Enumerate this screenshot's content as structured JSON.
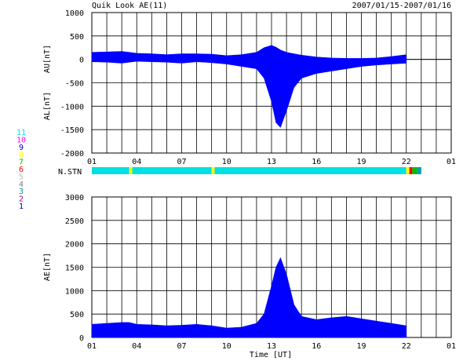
{
  "header": {
    "title": "Quik Look AE(11)",
    "date_range": "2007/01/15-2007/01/16"
  },
  "colors": {
    "fill": "#0000ff",
    "station_colors": {
      "11": "#00e0e0",
      "10": "#ff00ff",
      "9": "#0000c0",
      "8": "#ffff00",
      "7": "#00c000",
      "6": "#ff0000",
      "5": "#c0c0c0",
      "4": "#808080",
      "3": "#00a0a0",
      "2": "#a000a0",
      "1": "#0000a0"
    }
  },
  "station_legend": [
    "11",
    "10",
    "9",
    "8",
    "7",
    "6",
    "5",
    "4",
    "3",
    "2",
    "1"
  ],
  "chart_data": [
    {
      "type": "area",
      "name": "AU/AL",
      "ylabels": [
        "AU[nT]",
        "AL[nT]"
      ],
      "ylim": [
        -2000,
        1000
      ],
      "yticks": [
        1000,
        500,
        0,
        -500,
        -1000,
        -1500,
        -2000
      ],
      "xlim": [
        1,
        25
      ],
      "xtick_labels": [
        "01",
        "04",
        "07",
        "10",
        "13",
        "16",
        "19",
        "22",
        "01"
      ],
      "x_hours": [
        1,
        2,
        3,
        3.5,
        4,
        5,
        6,
        7,
        8,
        9,
        10,
        11,
        12,
        12.5,
        13,
        13.3,
        13.6,
        14,
        14.5,
        15,
        16,
        17,
        18,
        19,
        20,
        21,
        22
      ],
      "au": [
        150,
        160,
        170,
        150,
        130,
        120,
        100,
        120,
        120,
        110,
        80,
        100,
        150,
        250,
        300,
        260,
        200,
        150,
        120,
        90,
        50,
        30,
        20,
        20,
        30,
        60,
        100
      ],
      "al": [
        -50,
        -60,
        -80,
        -60,
        -40,
        -50,
        -60,
        -80,
        -50,
        -70,
        -100,
        -150,
        -200,
        -400,
        -900,
        -1350,
        -1450,
        -1100,
        -600,
        -400,
        -300,
        -250,
        -200,
        -150,
        -120,
        -100,
        -80
      ],
      "grid": true
    },
    {
      "type": "station_bar",
      "label": "N.STN",
      "segments": [
        {
          "from": 1,
          "to": 3.5,
          "station": "11"
        },
        {
          "from": 3.5,
          "to": 3.7,
          "station": "8"
        },
        {
          "from": 3.7,
          "to": 9.0,
          "station": "11"
        },
        {
          "from": 9.0,
          "to": 9.2,
          "station": "8"
        },
        {
          "from": 9.2,
          "to": 22.0,
          "station": "11"
        },
        {
          "from": 22.0,
          "to": 22.2,
          "station": "8"
        },
        {
          "from": 22.2,
          "to": 22.4,
          "station": "6"
        },
        {
          "from": 22.4,
          "to": 22.7,
          "station": "7"
        },
        {
          "from": 22.7,
          "to": 23.0,
          "station": "3"
        }
      ]
    },
    {
      "type": "area",
      "name": "AE",
      "ylabel": "AE[nT]",
      "ylim": [
        0,
        3000
      ],
      "yticks": [
        3000,
        2500,
        2000,
        1500,
        1000,
        500,
        0
      ],
      "xlim": [
        1,
        25
      ],
      "xlabel": "Time [UT]",
      "xtick_labels": [
        "01",
        "04",
        "07",
        "10",
        "13",
        "16",
        "19",
        "22",
        "01"
      ],
      "x_hours": [
        1,
        2,
        3,
        3.5,
        4,
        5,
        6,
        7,
        8,
        9,
        10,
        11,
        12,
        12.5,
        13,
        13.3,
        13.6,
        14,
        14.5,
        15,
        16,
        17,
        18,
        19,
        20,
        21,
        22
      ],
      "values": [
        280,
        300,
        320,
        320,
        280,
        270,
        250,
        260,
        280,
        250,
        200,
        220,
        300,
        500,
        1100,
        1500,
        1700,
        1350,
        700,
        450,
        380,
        420,
        450,
        400,
        350,
        300,
        250
      ],
      "grid": true
    }
  ]
}
